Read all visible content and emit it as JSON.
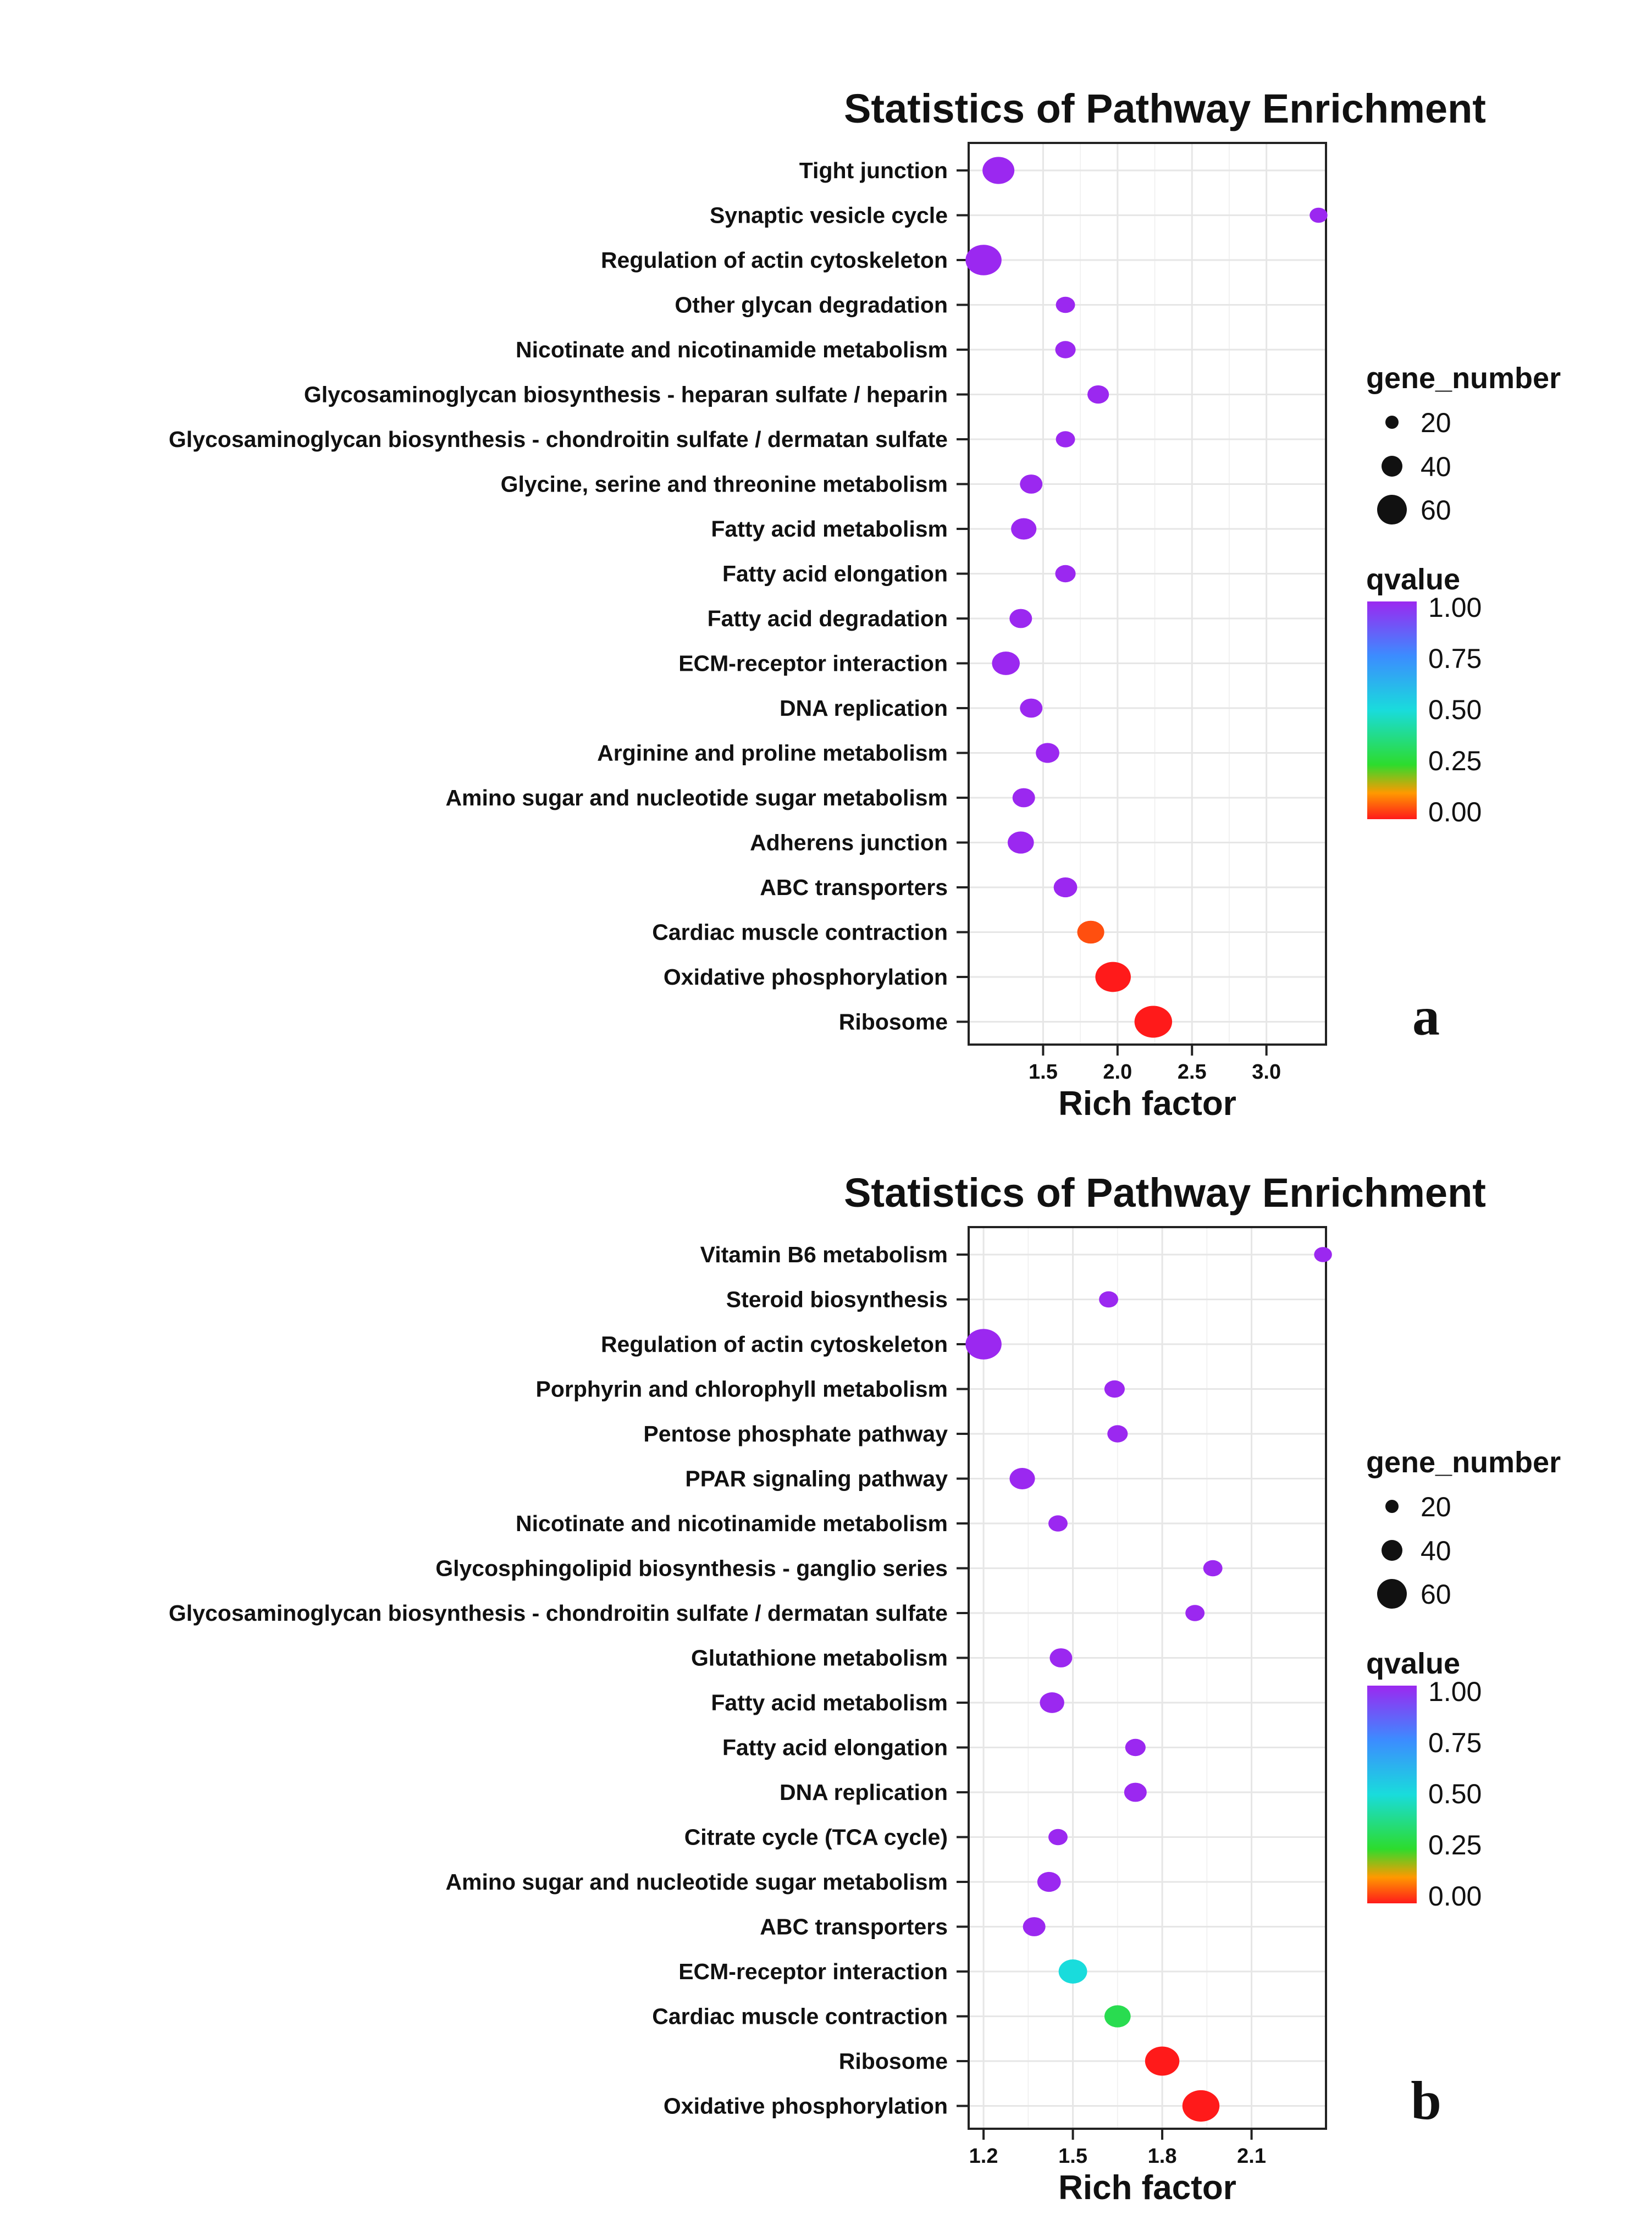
{
  "figure": {
    "legend": {
      "size_title": "gene_number",
      "size_labels": [
        "20",
        "40",
        "60"
      ],
      "color_title": "qvalue",
      "color_labels": [
        "1.00",
        "0.75",
        "0.50",
        "0.25",
        "0.00"
      ]
    },
    "colors": {
      "q_1.00": "#9b28f0",
      "q_0.75": "#3c8cff",
      "q_0.50": "#19dcdc",
      "q_0.25": "#2ddc2d",
      "q_0.00": "#ff1a1a"
    }
  },
  "chart_data": [
    {
      "type": "scatter",
      "title": "Statistics of Pathway Enrichment",
      "panel": "a",
      "xlabel": "Rich factor",
      "ylabel": "",
      "xlim": [
        1.0,
        3.4
      ],
      "xticks": [
        1.5,
        2.0,
        2.5,
        3.0
      ],
      "xtick_labels": [
        "1.5",
        "2.0",
        "2.5",
        "3.0"
      ],
      "categories": [
        "Tight junction",
        "Synaptic vesicle cycle",
        "Regulation of actin cytoskeleton",
        "Other glycan degradation",
        "Nicotinate and nicotinamide metabolism",
        "Glycosaminoglycan biosynthesis - heparan sulfate / heparin",
        "Glycosaminoglycan biosynthesis - chondroitin sulfate / dermatan sulfate",
        "Glycine, serine and threonine metabolism",
        "Fatty acid metabolism",
        "Fatty acid elongation",
        "Fatty acid degradation",
        "ECM-receptor interaction",
        "DNA replication",
        "Arginine and proline metabolism",
        "Amino sugar and nucleotide sugar metabolism",
        "Adherens junction",
        "ABC transporters",
        "Cardiac muscle contraction",
        "Oxidative phosphorylation",
        "Ribosome"
      ],
      "rich_factor": [
        1.2,
        3.35,
        1.1,
        1.65,
        1.65,
        1.87,
        1.65,
        1.42,
        1.37,
        1.65,
        1.35,
        1.25,
        1.42,
        1.53,
        1.37,
        1.35,
        1.65,
        1.82,
        1.97,
        2.24
      ],
      "gene_number": [
        40,
        8,
        54,
        10,
        12,
        14,
        10,
        16,
        22,
        12,
        16,
        28,
        16,
        18,
        16,
        24,
        18,
        26,
        52,
        60
      ],
      "qvalue": [
        1.0,
        1.0,
        1.0,
        1.0,
        1.0,
        1.0,
        1.0,
        1.0,
        1.0,
        1.0,
        1.0,
        1.0,
        1.0,
        1.0,
        1.0,
        1.0,
        1.0,
        0.05,
        0.0,
        0.0
      ]
    },
    {
      "type": "scatter",
      "title": "Statistics of Pathway Enrichment",
      "panel": "b",
      "xlabel": "Rich factor",
      "ylabel": "",
      "xlim": [
        1.15,
        2.35
      ],
      "xticks": [
        1.2,
        1.5,
        1.8,
        2.1
      ],
      "xtick_labels": [
        "1.2",
        "1.5",
        "1.8",
        "2.1"
      ],
      "categories": [
        "Vitamin B6 metabolism",
        "Steroid biosynthesis",
        "Regulation of actin cytoskeleton",
        "Porphyrin and chlorophyll metabolism",
        "Pentose phosphate pathway",
        "PPAR signaling pathway",
        "Nicotinate and nicotinamide metabolism",
        "Glycosphingolipid biosynthesis - ganglio series",
        "Glycosaminoglycan biosynthesis - chondroitin sulfate / dermatan sulfate",
        "Glutathione metabolism",
        "Fatty acid metabolism",
        "Fatty acid elongation",
        "DNA replication",
        "Citrate cycle (TCA cycle)",
        "Amino sugar and nucleotide sugar metabolism",
        "ABC transporters",
        "ECM-receptor interaction",
        "Cardiac muscle contraction",
        "Ribosome",
        "Oxidative phosphorylation"
      ],
      "rich_factor": [
        2.34,
        1.62,
        1.2,
        1.64,
        1.65,
        1.33,
        1.45,
        1.97,
        1.91,
        1.46,
        1.43,
        1.71,
        1.71,
        1.45,
        1.42,
        1.37,
        1.5,
        1.65,
        1.8,
        1.93
      ],
      "gene_number": [
        8,
        10,
        54,
        12,
        12,
        22,
        10,
        10,
        10,
        16,
        20,
        12,
        16,
        10,
        18,
        16,
        30,
        24,
        48,
        58
      ],
      "qvalue": [
        1.0,
        1.0,
        1.0,
        1.0,
        1.0,
        1.0,
        1.0,
        1.0,
        1.0,
        1.0,
        1.0,
        1.0,
        1.0,
        1.0,
        1.0,
        1.0,
        0.5,
        0.3,
        0.0,
        0.0
      ]
    }
  ]
}
